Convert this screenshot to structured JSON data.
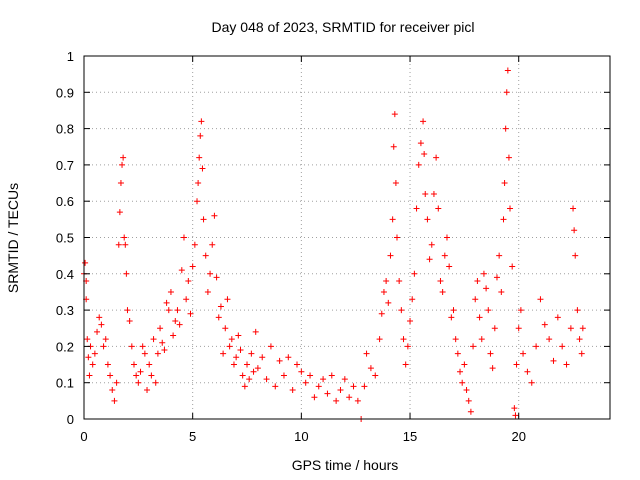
{
  "chart_data": {
    "type": "scatter",
    "title": "Day 048 of 2023, SRMTID for receiver picl",
    "xlabel": "GPS time / hours",
    "ylabel": "SRMTID / TECUs",
    "xlim": [
      0,
      24.2
    ],
    "ylim": [
      0,
      1
    ],
    "x_ticks": [
      0,
      5,
      10,
      15,
      20
    ],
    "x_tick_labels": [
      "0",
      "5",
      "10",
      "15",
      "20"
    ],
    "y_ticks": [
      0,
      0.1,
      0.2,
      0.3,
      0.4,
      0.5,
      0.6,
      0.7,
      0.8,
      0.9,
      1
    ],
    "y_tick_labels": [
      "0",
      "0.1",
      "0.2",
      "0.3",
      "0.4",
      "0.5",
      "0.6",
      "0.7",
      "0.8",
      "0.9",
      "1"
    ],
    "grid": true,
    "marker": "+",
    "color": "#ff0000",
    "series": [
      {
        "name": "SRMTID",
        "points": [
          [
            0.0,
            0.4
          ],
          [
            0.05,
            0.43
          ],
          [
            0.1,
            0.38
          ],
          [
            0.1,
            0.33
          ],
          [
            0.15,
            0.22
          ],
          [
            0.2,
            0.17
          ],
          [
            0.25,
            0.12
          ],
          [
            0.3,
            0.2
          ],
          [
            0.4,
            0.15
          ],
          [
            0.5,
            0.18
          ],
          [
            0.6,
            0.24
          ],
          [
            0.7,
            0.28
          ],
          [
            0.8,
            0.26
          ],
          [
            0.9,
            0.2
          ],
          [
            1.0,
            0.22
          ],
          [
            1.1,
            0.15
          ],
          [
            1.2,
            0.12
          ],
          [
            1.3,
            0.08
          ],
          [
            1.4,
            0.05
          ],
          [
            1.5,
            0.1
          ],
          [
            1.6,
            0.48
          ],
          [
            1.65,
            0.57
          ],
          [
            1.7,
            0.65
          ],
          [
            1.75,
            0.7
          ],
          [
            1.8,
            0.72
          ],
          [
            1.85,
            0.5
          ],
          [
            1.9,
            0.48
          ],
          [
            1.95,
            0.4
          ],
          [
            2.0,
            0.3
          ],
          [
            2.1,
            0.27
          ],
          [
            2.2,
            0.2
          ],
          [
            2.3,
            0.15
          ],
          [
            2.4,
            0.12
          ],
          [
            2.5,
            0.1
          ],
          [
            2.6,
            0.13
          ],
          [
            2.7,
            0.2
          ],
          [
            2.8,
            0.18
          ],
          [
            2.9,
            0.08
          ],
          [
            3.0,
            0.15
          ],
          [
            3.1,
            0.12
          ],
          [
            3.2,
            0.22
          ],
          [
            3.3,
            0.1
          ],
          [
            3.4,
            0.18
          ],
          [
            3.5,
            0.25
          ],
          [
            3.6,
            0.21
          ],
          [
            3.7,
            0.19
          ],
          [
            3.8,
            0.32
          ],
          [
            3.9,
            0.3
          ],
          [
            4.0,
            0.35
          ],
          [
            4.1,
            0.23
          ],
          [
            4.2,
            0.27
          ],
          [
            4.3,
            0.3
          ],
          [
            4.4,
            0.26
          ],
          [
            4.5,
            0.41
          ],
          [
            4.6,
            0.5
          ],
          [
            4.7,
            0.33
          ],
          [
            4.8,
            0.38
          ],
          [
            4.9,
            0.29
          ],
          [
            5.0,
            0.42
          ],
          [
            5.1,
            0.48
          ],
          [
            5.2,
            0.6
          ],
          [
            5.25,
            0.65
          ],
          [
            5.3,
            0.72
          ],
          [
            5.35,
            0.78
          ],
          [
            5.4,
            0.82
          ],
          [
            5.45,
            0.69
          ],
          [
            5.5,
            0.55
          ],
          [
            5.6,
            0.45
          ],
          [
            5.7,
            0.35
          ],
          [
            5.8,
            0.4
          ],
          [
            5.9,
            0.48
          ],
          [
            6.0,
            0.56
          ],
          [
            6.1,
            0.39
          ],
          [
            6.2,
            0.28
          ],
          [
            6.3,
            0.31
          ],
          [
            6.4,
            0.18
          ],
          [
            6.5,
            0.25
          ],
          [
            6.6,
            0.33
          ],
          [
            6.7,
            0.2
          ],
          [
            6.8,
            0.22
          ],
          [
            6.9,
            0.15
          ],
          [
            7.0,
            0.17
          ],
          [
            7.1,
            0.23
          ],
          [
            7.2,
            0.19
          ],
          [
            7.3,
            0.12
          ],
          [
            7.4,
            0.09
          ],
          [
            7.5,
            0.15
          ],
          [
            7.6,
            0.11
          ],
          [
            7.7,
            0.18
          ],
          [
            7.8,
            0.13
          ],
          [
            7.9,
            0.24
          ],
          [
            8.0,
            0.14
          ],
          [
            8.2,
            0.17
          ],
          [
            8.4,
            0.11
          ],
          [
            8.6,
            0.2
          ],
          [
            8.8,
            0.09
          ],
          [
            9.0,
            0.16
          ],
          [
            9.2,
            0.12
          ],
          [
            9.4,
            0.17
          ],
          [
            9.6,
            0.08
          ],
          [
            9.8,
            0.15
          ],
          [
            10.0,
            0.13
          ],
          [
            10.2,
            0.1
          ],
          [
            10.4,
            0.12
          ],
          [
            10.6,
            0.06
          ],
          [
            10.8,
            0.09
          ],
          [
            11.0,
            0.11
          ],
          [
            11.2,
            0.07
          ],
          [
            11.4,
            0.12
          ],
          [
            11.6,
            0.05
          ],
          [
            11.8,
            0.08
          ],
          [
            12.0,
            0.11
          ],
          [
            12.2,
            0.06
          ],
          [
            12.4,
            0.09
          ],
          [
            12.6,
            0.05
          ],
          [
            12.75,
            0.0
          ],
          [
            12.9,
            0.09
          ],
          [
            13.0,
            0.18
          ],
          [
            13.2,
            0.14
          ],
          [
            13.4,
            0.12
          ],
          [
            13.6,
            0.22
          ],
          [
            13.7,
            0.29
          ],
          [
            13.8,
            0.35
          ],
          [
            13.9,
            0.38
          ],
          [
            14.0,
            0.32
          ],
          [
            14.1,
            0.45
          ],
          [
            14.2,
            0.55
          ],
          [
            14.25,
            0.75
          ],
          [
            14.3,
            0.84
          ],
          [
            14.35,
            0.65
          ],
          [
            14.4,
            0.5
          ],
          [
            14.5,
            0.38
          ],
          [
            14.6,
            0.3
          ],
          [
            14.7,
            0.22
          ],
          [
            14.8,
            0.15
          ],
          [
            14.9,
            0.2
          ],
          [
            15.0,
            0.27
          ],
          [
            15.1,
            0.33
          ],
          [
            15.2,
            0.4
          ],
          [
            15.3,
            0.58
          ],
          [
            15.4,
            0.7
          ],
          [
            15.5,
            0.76
          ],
          [
            15.6,
            0.82
          ],
          [
            15.65,
            0.73
          ],
          [
            15.7,
            0.62
          ],
          [
            15.8,
            0.55
          ],
          [
            15.9,
            0.44
          ],
          [
            16.0,
            0.48
          ],
          [
            16.1,
            0.62
          ],
          [
            16.2,
            0.72
          ],
          [
            16.3,
            0.58
          ],
          [
            16.4,
            0.38
          ],
          [
            16.5,
            0.35
          ],
          [
            16.6,
            0.45
          ],
          [
            16.7,
            0.5
          ],
          [
            16.8,
            0.42
          ],
          [
            16.9,
            0.28
          ],
          [
            17.0,
            0.3
          ],
          [
            17.1,
            0.22
          ],
          [
            17.2,
            0.18
          ],
          [
            17.3,
            0.13
          ],
          [
            17.4,
            0.1
          ],
          [
            17.5,
            0.15
          ],
          [
            17.6,
            0.08
          ],
          [
            17.7,
            0.05
          ],
          [
            17.8,
            0.02
          ],
          [
            17.9,
            0.2
          ],
          [
            18.0,
            0.33
          ],
          [
            18.1,
            0.38
          ],
          [
            18.2,
            0.28
          ],
          [
            18.3,
            0.22
          ],
          [
            18.4,
            0.4
          ],
          [
            18.5,
            0.36
          ],
          [
            18.6,
            0.3
          ],
          [
            18.7,
            0.18
          ],
          [
            18.8,
            0.14
          ],
          [
            18.9,
            0.25
          ],
          [
            19.0,
            0.39
          ],
          [
            19.1,
            0.45
          ],
          [
            19.2,
            0.35
          ],
          [
            19.3,
            0.55
          ],
          [
            19.35,
            0.65
          ],
          [
            19.4,
            0.8
          ],
          [
            19.45,
            0.9
          ],
          [
            19.5,
            0.96
          ],
          [
            19.55,
            0.72
          ],
          [
            19.6,
            0.58
          ],
          [
            19.7,
            0.42
          ],
          [
            19.8,
            0.03
          ],
          [
            19.85,
            0.01
          ],
          [
            19.9,
            0.15
          ],
          [
            20.0,
            0.25
          ],
          [
            20.1,
            0.3
          ],
          [
            20.2,
            0.18
          ],
          [
            20.4,
            0.13
          ],
          [
            20.6,
            0.1
          ],
          [
            20.8,
            0.2
          ],
          [
            21.0,
            0.33
          ],
          [
            21.2,
            0.26
          ],
          [
            21.4,
            0.22
          ],
          [
            21.6,
            0.16
          ],
          [
            21.8,
            0.28
          ],
          [
            22.0,
            0.2
          ],
          [
            22.2,
            0.15
          ],
          [
            22.4,
            0.25
          ],
          [
            22.5,
            0.58
          ],
          [
            22.55,
            0.52
          ],
          [
            22.6,
            0.45
          ],
          [
            22.7,
            0.3
          ],
          [
            22.8,
            0.22
          ],
          [
            22.9,
            0.18
          ],
          [
            22.95,
            0.25
          ]
        ]
      }
    ]
  }
}
